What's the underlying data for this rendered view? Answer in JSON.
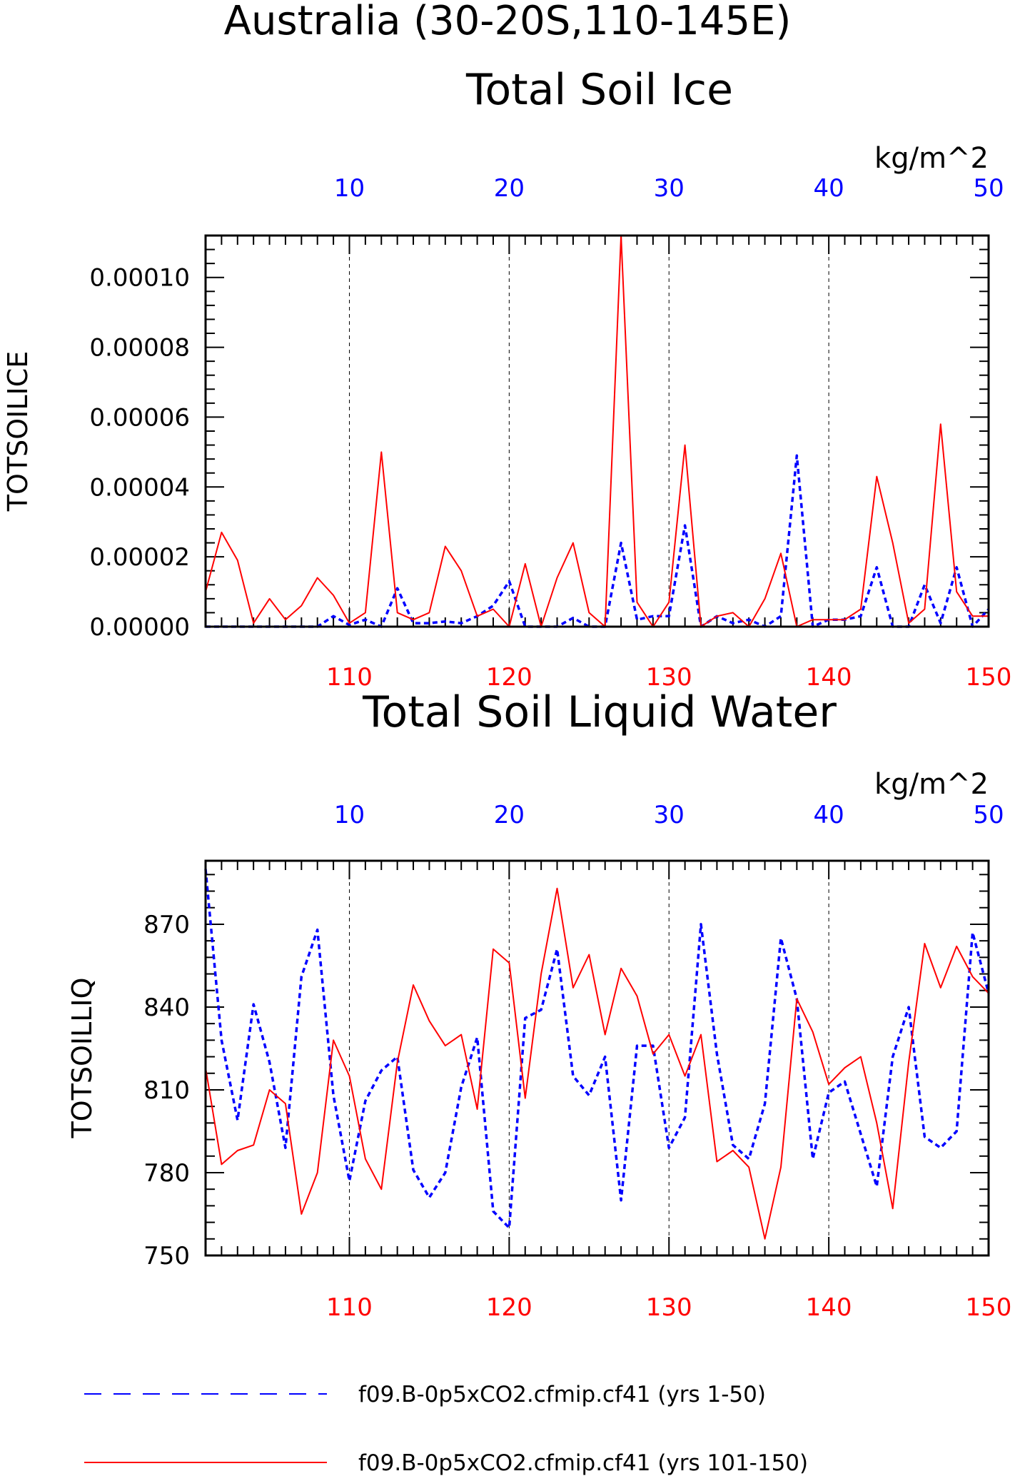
{
  "figure": {
    "title": "Australia (30-20S,110-145E)"
  },
  "legend": [
    {
      "label": "f09.B-0p5xCO2.cfmip.cf41 (yrs 1-50)",
      "color": "#0000ff",
      "dash": "dashed"
    },
    {
      "label": "f09.B-0p5xCO2.cfmip.cf41 (yrs 101-150)",
      "color": "#ff0000",
      "dash": "solid"
    }
  ],
  "chart_data": [
    {
      "type": "line",
      "title": "Total Soil Ice",
      "units": "kg/m^2",
      "ylabel": "TOTSOILICE",
      "ylim": [
        0,
        0.000112
      ],
      "yticks": [
        0,
        2e-05,
        4e-05,
        6e-05,
        8e-05,
        0.0001
      ],
      "ytick_labels": [
        "0.00000",
        "0.00002",
        "0.00004",
        "0.00006",
        "0.00008",
        "0.00010"
      ],
      "top_axis": {
        "range": [
          1,
          50
        ],
        "ticks": [
          10,
          20,
          30,
          40,
          50
        ],
        "color": "#0000ff"
      },
      "bottom_axis": {
        "range": [
          101,
          150
        ],
        "ticks": [
          110,
          120,
          130,
          140,
          150
        ],
        "color": "#ff0000"
      },
      "grid": "vertical dashed at major ticks",
      "series": [
        {
          "name": "f09.B-0p5xCO2.cfmip.cf41 (yrs 1-50)",
          "axis": "top",
          "x_start": 1,
          "color": "#0000ff",
          "dash": "dashed",
          "values": [
            0.0,
            0.0,
            0.0,
            0.0,
            0.0,
            0.0,
            0.0,
            0.0,
            3e-06,
            5e-07,
            2e-06,
            0.0,
            1.1e-05,
            1e-06,
            1e-06,
            1.5e-06,
            1e-06,
            3e-06,
            6e-06,
            1.3e-05,
            0.0,
            0.0,
            0.0,
            2.5e-06,
            0.0,
            0.0,
            2.4e-05,
            2e-06,
            3e-06,
            3e-06,
            2.9e-05,
            0.0,
            3e-06,
            1e-06,
            2e-06,
            0.0,
            3e-06,
            4.9e-05,
            0.0,
            2e-06,
            2e-06,
            3e-06,
            1.7e-05,
            0.0,
            0.0,
            1.2e-05,
            1e-06,
            1.7e-05,
            0.0,
            5e-06
          ]
        },
        {
          "name": "f09.B-0p5xCO2.cfmip.cf41 (yrs 101-150)",
          "axis": "bottom",
          "x_start": 101,
          "color": "#ff0000",
          "dash": "solid",
          "values": [
            1e-05,
            2.7e-05,
            1.9e-05,
            1e-06,
            8e-06,
            2e-06,
            6e-06,
            1.4e-05,
            9e-06,
            1e-06,
            4e-06,
            5e-05,
            4e-06,
            2e-06,
            4e-06,
            2.3e-05,
            1.6e-05,
            3e-06,
            5e-06,
            0.0,
            1.8e-05,
            0.0,
            1.4e-05,
            2.4e-05,
            4e-06,
            0.0,
            0.000112,
            7e-06,
            0.0,
            7e-06,
            5.2e-05,
            0.0,
            3e-06,
            4e-06,
            0.0,
            8e-06,
            2.1e-05,
            0.0,
            2e-06,
            2e-06,
            2e-06,
            5e-06,
            4.3e-05,
            2.4e-05,
            1e-06,
            5e-06,
            5.8e-05,
            1e-05,
            3e-06,
            3e-06
          ]
        }
      ]
    },
    {
      "type": "line",
      "title": "Total Soil Liquid Water",
      "units": "kg/m^2",
      "ylabel": "TOTSOILLIQ",
      "ylim": [
        750,
        893
      ],
      "yticks": [
        750,
        780,
        810,
        840,
        870
      ],
      "ytick_labels": [
        "750",
        "780",
        "810",
        "840",
        "870"
      ],
      "top_axis": {
        "range": [
          1,
          50
        ],
        "ticks": [
          10,
          20,
          30,
          40,
          50
        ],
        "color": "#0000ff"
      },
      "bottom_axis": {
        "range": [
          101,
          150
        ],
        "ticks": [
          110,
          120,
          130,
          140,
          150
        ],
        "color": "#ff0000"
      },
      "grid": "vertical dashed at major ticks",
      "series": [
        {
          "name": "f09.B-0p5xCO2.cfmip.cf41 (yrs 1-50)",
          "axis": "top",
          "x_start": 1,
          "color": "#0000ff",
          "dash": "dashed",
          "values": [
            890,
            828,
            799,
            841,
            820,
            789,
            851,
            868,
            808,
            777,
            806,
            817,
            822,
            781,
            771,
            780,
            811,
            829,
            766,
            760,
            836,
            839,
            861,
            815,
            808,
            822,
            770,
            826,
            826,
            789,
            800,
            870,
            823,
            790,
            785,
            805,
            865,
            843,
            785,
            809,
            813,
            794,
            775,
            822,
            840,
            793,
            789,
            795,
            867,
            845
          ]
        },
        {
          "name": "f09.B-0p5xCO2.cfmip.cf41 (yrs 101-150)",
          "axis": "bottom",
          "x_start": 101,
          "color": "#ff0000",
          "dash": "solid",
          "values": [
            818,
            783,
            788,
            790,
            810,
            805,
            765,
            780,
            828,
            815,
            785,
            774,
            820,
            848,
            835,
            826,
            830,
            803,
            861,
            856,
            807,
            852,
            883,
            847,
            859,
            830,
            854,
            844,
            823,
            830,
            815,
            830,
            784,
            788,
            782,
            756,
            782,
            843,
            831,
            812,
            818,
            822,
            798,
            767,
            820,
            863,
            847,
            862,
            851,
            845
          ]
        }
      ]
    }
  ]
}
